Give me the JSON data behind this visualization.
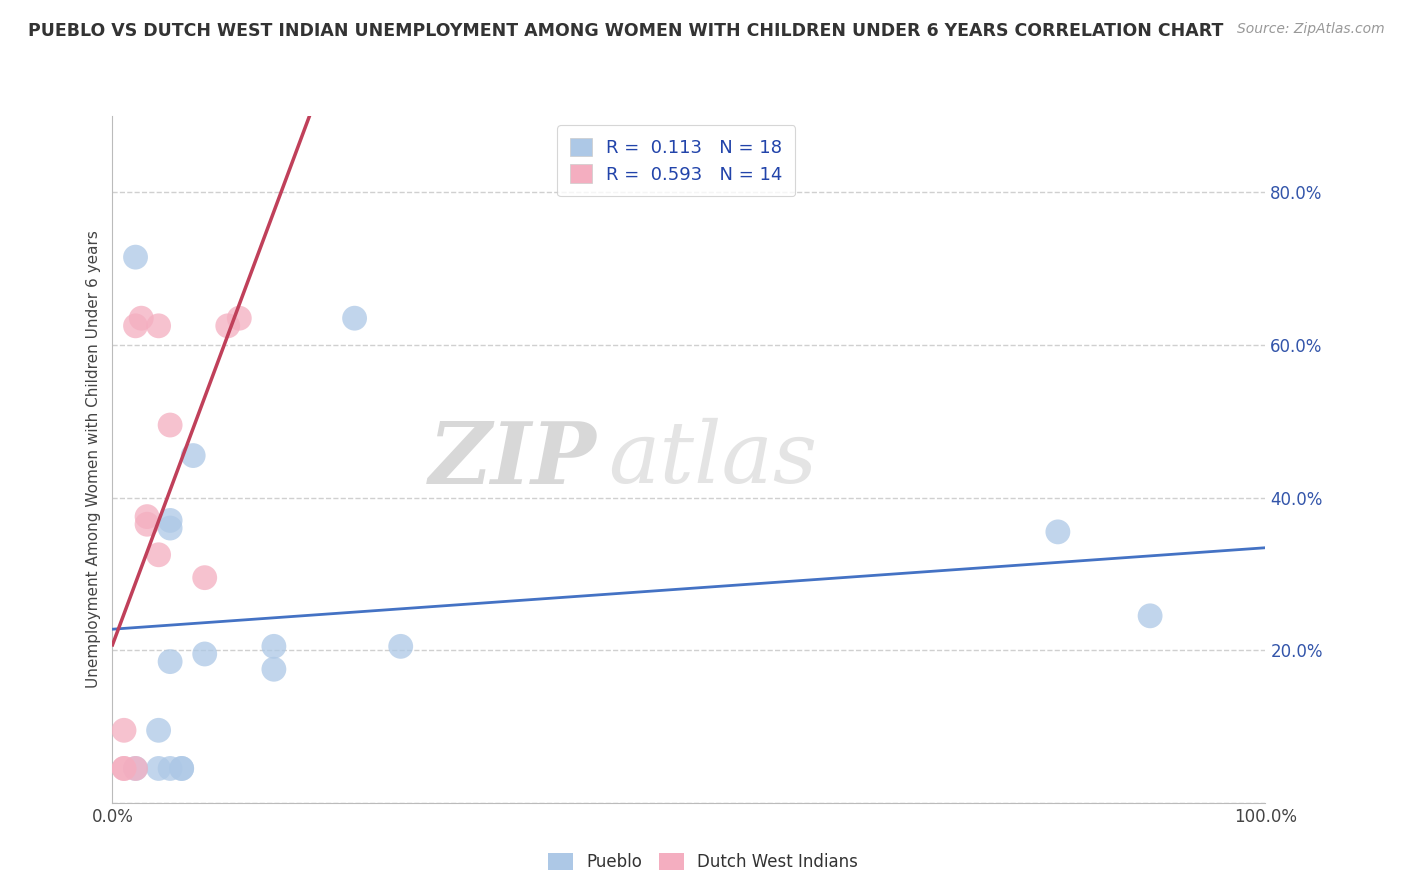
{
  "title": "PUEBLO VS DUTCH WEST INDIAN UNEMPLOYMENT AMONG WOMEN WITH CHILDREN UNDER 6 YEARS CORRELATION CHART",
  "source": "Source: ZipAtlas.com",
  "ylabel": "Unemployment Among Women with Children Under 6 years",
  "xlim": [
    0,
    1.0
  ],
  "ylim": [
    0,
    0.9
  ],
  "pueblo_color": "#adc8e6",
  "dutch_color": "#f4aec0",
  "pueblo_line_color": "#4472c4",
  "dutch_line_color": "#c0405a",
  "dutch_dash_color": "#d4a0a8",
  "pueblo_R": 0.113,
  "pueblo_N": 18,
  "dutch_R": 0.593,
  "dutch_N": 14,
  "pueblo_scatter_x": [
    0.02,
    0.04,
    0.04,
    0.05,
    0.05,
    0.05,
    0.05,
    0.06,
    0.06,
    0.07,
    0.08,
    0.14,
    0.14,
    0.21,
    0.25,
    0.82,
    0.9,
    0.02
  ],
  "pueblo_scatter_y": [
    0.715,
    0.095,
    0.045,
    0.37,
    0.36,
    0.185,
    0.045,
    0.045,
    0.045,
    0.455,
    0.195,
    0.205,
    0.175,
    0.635,
    0.205,
    0.355,
    0.245,
    0.045
  ],
  "dutch_scatter_x": [
    0.01,
    0.01,
    0.01,
    0.02,
    0.025,
    0.02,
    0.03,
    0.03,
    0.04,
    0.04,
    0.05,
    0.08,
    0.1,
    0.11
  ],
  "dutch_scatter_y": [
    0.045,
    0.095,
    0.045,
    0.625,
    0.635,
    0.045,
    0.375,
    0.365,
    0.325,
    0.625,
    0.495,
    0.295,
    0.625,
    0.635
  ],
  "watermark_zip": "ZIP",
  "watermark_atlas": "atlas",
  "background_color": "#ffffff",
  "grid_color": "#d0d0d0",
  "ytick_positions": [
    0.0,
    0.2,
    0.4,
    0.6,
    0.8
  ],
  "ytick_labels": [
    "",
    "20.0%",
    "40.0%",
    "60.0%",
    "80.0%"
  ],
  "xtick_positions": [
    0.0,
    0.2,
    0.4,
    0.6,
    0.8,
    1.0
  ],
  "xtick_labels": [
    "0.0%",
    "",
    "",
    "",
    "",
    "100.0%"
  ]
}
